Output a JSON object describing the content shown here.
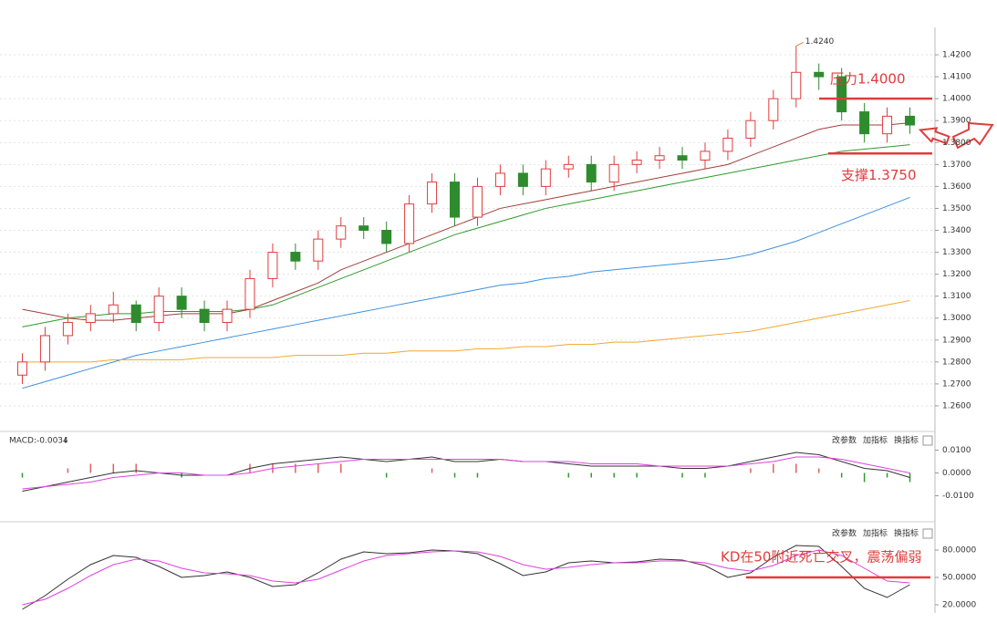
{
  "chart_data": [
    {
      "type": "candlestick",
      "ylim": [
        1.25,
        1.43
      ],
      "yticks": [
        {
          "value": 1.26,
          "label": "1.2600"
        },
        {
          "value": 1.27,
          "label": "1.2700"
        },
        {
          "value": 1.28,
          "label": "1.2800"
        },
        {
          "value": 1.29,
          "label": "1.2900"
        },
        {
          "value": 1.3,
          "label": "1.3000"
        },
        {
          "value": 1.31,
          "label": "1.3100"
        },
        {
          "value": 1.32,
          "label": "1.3200"
        },
        {
          "value": 1.33,
          "label": "1.3300"
        },
        {
          "value": 1.34,
          "label": "1.3400"
        },
        {
          "value": 1.35,
          "label": "1.3500"
        },
        {
          "value": 1.36,
          "label": "1.3600"
        },
        {
          "value": 1.37,
          "label": "1.3700"
        },
        {
          "value": 1.38,
          "label": "1.3800"
        },
        {
          "value": 1.39,
          "label": "1.3900"
        },
        {
          "value": 1.4,
          "label": "1.4000"
        },
        {
          "value": 1.41,
          "label": "1.4100"
        },
        {
          "value": 1.42,
          "label": "1.4200"
        }
      ],
      "grid": true,
      "up_color": "#e03c3c",
      "down_color": "#2e8b2e",
      "open": [
        1.274,
        1.28,
        1.292,
        1.298,
        1.302,
        1.306,
        1.298,
        1.31,
        1.304,
        1.298,
        1.304,
        1.318,
        1.33,
        1.326,
        1.336,
        1.342,
        1.34,
        1.334,
        1.352,
        1.362,
        1.346,
        1.36,
        1.366,
        1.36,
        1.368,
        1.37,
        1.362,
        1.37,
        1.372,
        1.374,
        1.372,
        1.376,
        1.382,
        1.39,
        1.4,
        1.412,
        1.41,
        1.394,
        1.384,
        1.392
      ],
      "high": [
        1.284,
        1.296,
        1.302,
        1.306,
        1.312,
        1.308,
        1.314,
        1.314,
        1.308,
        1.308,
        1.322,
        1.334,
        1.334,
        1.34,
        1.346,
        1.346,
        1.344,
        1.356,
        1.366,
        1.366,
        1.364,
        1.37,
        1.37,
        1.372,
        1.374,
        1.374,
        1.374,
        1.376,
        1.378,
        1.378,
        1.38,
        1.386,
        1.394,
        1.404,
        1.424,
        1.416,
        1.414,
        1.398,
        1.396,
        1.396
      ],
      "low": [
        1.27,
        1.276,
        1.288,
        1.294,
        1.298,
        1.294,
        1.294,
        1.3,
        1.294,
        1.294,
        1.3,
        1.314,
        1.322,
        1.322,
        1.332,
        1.336,
        1.33,
        1.33,
        1.348,
        1.342,
        1.342,
        1.356,
        1.356,
        1.356,
        1.364,
        1.358,
        1.358,
        1.366,
        1.368,
        1.368,
        1.368,
        1.372,
        1.378,
        1.386,
        1.396,
        1.404,
        1.39,
        1.38,
        1.38,
        1.384
      ],
      "close": [
        1.28,
        1.292,
        1.298,
        1.302,
        1.306,
        1.298,
        1.31,
        1.304,
        1.298,
        1.304,
        1.318,
        1.33,
        1.326,
        1.336,
        1.342,
        1.34,
        1.334,
        1.352,
        1.362,
        1.346,
        1.36,
        1.366,
        1.36,
        1.368,
        1.37,
        1.362,
        1.37,
        1.372,
        1.374,
        1.372,
        1.376,
        1.382,
        1.39,
        1.4,
        1.412,
        1.41,
        1.394,
        1.384,
        1.392,
        1.388
      ],
      "series": [
        {
          "color": "#2e9b2e",
          "values": [
            1.296,
            1.298,
            1.3,
            1.301,
            1.302,
            1.302,
            1.303,
            1.303,
            1.303,
            1.303,
            1.304,
            1.306,
            1.31,
            1.314,
            1.318,
            1.322,
            1.326,
            1.33,
            1.334,
            1.338,
            1.341,
            1.344,
            1.347,
            1.35,
            1.352,
            1.354,
            1.356,
            1.358,
            1.36,
            1.362,
            1.364,
            1.366,
            1.368,
            1.37,
            1.372,
            1.374,
            1.376,
            1.377,
            1.378,
            1.379
          ]
        },
        {
          "color": "#3d8fe0",
          "values": [
            1.268,
            1.271,
            1.274,
            1.277,
            1.28,
            1.283,
            1.285,
            1.287,
            1.289,
            1.291,
            1.293,
            1.295,
            1.297,
            1.299,
            1.301,
            1.303,
            1.305,
            1.307,
            1.309,
            1.311,
            1.313,
            1.315,
            1.316,
            1.318,
            1.319,
            1.321,
            1.322,
            1.323,
            1.324,
            1.325,
            1.326,
            1.327,
            1.329,
            1.332,
            1.335,
            1.339,
            1.343,
            1.347,
            1.351,
            1.355
          ]
        },
        {
          "color": "#f0a830",
          "values": [
            1.28,
            1.28,
            1.28,
            1.28,
            1.281,
            1.281,
            1.281,
            1.281,
            1.282,
            1.282,
            1.282,
            1.282,
            1.283,
            1.283,
            1.283,
            1.284,
            1.284,
            1.285,
            1.285,
            1.285,
            1.286,
            1.286,
            1.287,
            1.287,
            1.288,
            1.288,
            1.289,
            1.289,
            1.29,
            1.291,
            1.292,
            1.293,
            1.294,
            1.296,
            1.298,
            1.3,
            1.302,
            1.304,
            1.306,
            1.308
          ]
        },
        {
          "color": "#a0403a",
          "values": [
            1.304,
            1.302,
            1.3,
            1.299,
            1.299,
            1.3,
            1.301,
            1.302,
            1.302,
            1.302,
            1.304,
            1.308,
            1.312,
            1.316,
            1.322,
            1.326,
            1.33,
            1.334,
            1.338,
            1.342,
            1.346,
            1.35,
            1.352,
            1.354,
            1.356,
            1.358,
            1.36,
            1.362,
            1.364,
            1.366,
            1.368,
            1.37,
            1.374,
            1.378,
            1.382,
            1.386,
            1.388,
            1.388,
            1.388,
            1.389
          ]
        }
      ],
      "high_label": "1.4240",
      "levels": [
        {
          "label": "压力1.4000",
          "value": 1.4
        },
        {
          "label": "支撑1.3750",
          "value": 1.375
        }
      ],
      "level_color": "#e03c3c"
    },
    {
      "type": "macd",
      "title": "MACD:-0.0034",
      "ylim": [
        -0.02,
        0.015
      ],
      "yticks": [
        {
          "value": 0.01,
          "label": "0.0100"
        },
        {
          "value": 0,
          "label": "0.0000"
        },
        {
          "value": -0.01,
          "label": "-0.0100"
        }
      ],
      "toolbar": [
        "改参数",
        "加指标",
        "换指标"
      ],
      "up_color": "#e06060",
      "down_color": "#2e9b2e",
      "histogram": [
        -0.002,
        0,
        0.002,
        0.004,
        0.004,
        0.004,
        0,
        -0.002,
        0,
        0,
        0.004,
        0.004,
        0.004,
        0.004,
        0.004,
        0,
        -0.002,
        0,
        0.002,
        -0.002,
        -0.002,
        0,
        0,
        0,
        -0.002,
        -0.002,
        -0.002,
        -0.002,
        0,
        -0.002,
        -0.002,
        0,
        0.002,
        0.004,
        0.004,
        0.002,
        -0.002,
        -0.004,
        -0.002,
        -0.004
      ],
      "series": [
        {
          "color": "#333333",
          "values": [
            -0.008,
            -0.006,
            -0.004,
            -0.002,
            0.0,
            0.001,
            0.0,
            -0.001,
            -0.001,
            -0.001,
            0.002,
            0.004,
            0.005,
            0.006,
            0.007,
            0.006,
            0.005,
            0.006,
            0.007,
            0.005,
            0.005,
            0.006,
            0.005,
            0.005,
            0.004,
            0.003,
            0.003,
            0.003,
            0.003,
            0.002,
            0.002,
            0.003,
            0.005,
            0.007,
            0.009,
            0.008,
            0.005,
            0.002,
            0.001,
            -0.002
          ]
        },
        {
          "color": "#e040e0",
          "values": [
            -0.007,
            -0.006,
            -0.005,
            -0.004,
            -0.002,
            -0.001,
            0.0,
            0.0,
            -0.001,
            -0.001,
            0.0,
            0.002,
            0.003,
            0.004,
            0.005,
            0.006,
            0.006,
            0.006,
            0.006,
            0.006,
            0.006,
            0.006,
            0.005,
            0.005,
            0.005,
            0.004,
            0.004,
            0.004,
            0.003,
            0.003,
            0.003,
            0.003,
            0.004,
            0.005,
            0.007,
            0.007,
            0.006,
            0.004,
            0.002,
            0.0
          ]
        }
      ]
    },
    {
      "type": "kd",
      "ylim": [
        15,
        100
      ],
      "yticks": [
        {
          "value": 80,
          "label": "80.0000"
        },
        {
          "value": 50,
          "label": "50.0000"
        },
        {
          "value": 20,
          "label": "20.0000"
        }
      ],
      "toolbar": [
        "改参数",
        "加指标",
        "换指标"
      ],
      "annotation": "KD在50附近死亡交叉，震荡偏弱",
      "level": 50,
      "level_color": "#e03c3c",
      "series": [
        {
          "color": "#333333",
          "values": [
            15,
            30,
            48,
            64,
            74,
            72,
            62,
            50,
            52,
            56,
            50,
            40,
            42,
            55,
            70,
            78,
            76,
            77,
            80,
            79,
            76,
            65,
            52,
            56,
            66,
            68,
            66,
            67,
            70,
            69,
            63,
            50,
            55,
            72,
            85,
            84,
            62,
            38,
            28,
            42
          ]
        },
        {
          "color": "#e040e0",
          "values": [
            20,
            26,
            38,
            52,
            64,
            70,
            68,
            60,
            55,
            54,
            52,
            46,
            44,
            48,
            58,
            68,
            74,
            76,
            78,
            79,
            78,
            73,
            64,
            59,
            61,
            64,
            66,
            66,
            68,
            68,
            66,
            60,
            57,
            63,
            74,
            80,
            74,
            60,
            46,
            44
          ]
        }
      ]
    }
  ]
}
